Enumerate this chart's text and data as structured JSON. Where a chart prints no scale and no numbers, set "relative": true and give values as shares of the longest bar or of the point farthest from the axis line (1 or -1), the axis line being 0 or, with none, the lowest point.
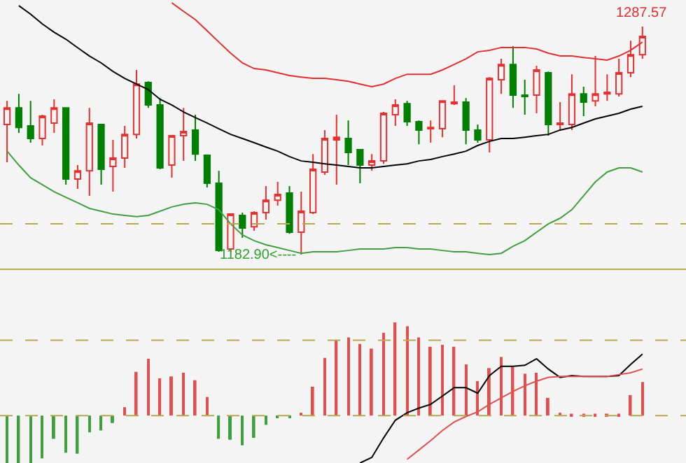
{
  "chart_data": [
    {
      "type": "candlestick",
      "categories": [
        null,
        null,
        null,
        null,
        null,
        null,
        null,
        null,
        null,
        null,
        null,
        null,
        null,
        null,
        null,
        null,
        null,
        null,
        null,
        null,
        null,
        null,
        null,
        null,
        null,
        null,
        null,
        null,
        null,
        null,
        null,
        null,
        null,
        null,
        null,
        null,
        null,
        null,
        null,
        null,
        null,
        null,
        null,
        null,
        null,
        null,
        null,
        null,
        null,
        null,
        null,
        null,
        null,
        null,
        null
      ],
      "ylim": [
        1176.5,
        1299.8
      ],
      "ref_lines": [
        {
          "axis": "y",
          "value": 1197.0,
          "color": "#b8a850",
          "line_style": "dashed"
        }
      ],
      "annotations": [
        {
          "text": "1287.57",
          "y": 1287.57
        },
        "1182.90<----"
      ],
      "series": [
        {
          "colors": [
            "#e83030",
            "#008000",
            "#008000",
            "#e83030",
            "#e83030",
            "#008000",
            "#e83030",
            "#e83030",
            "#008000",
            "#e83030",
            "#e83030",
            "#e83030",
            "#008000",
            "#008000",
            "#e83030",
            "#e83030",
            "#008000",
            "#008000",
            "#008000",
            "#e83030",
            "#008000",
            "#e83030",
            "#e83030",
            "#e83030",
            "#008000",
            "#e83030",
            "#e83030",
            "#e83030",
            "#e83030",
            "#008000",
            "#008000",
            "#e83030",
            "#e83030",
            "#e83030",
            "#008000",
            "#008000",
            "#e83030",
            "#e83030",
            "#e83030",
            "#008000",
            "#008000",
            "#e83030",
            "#e83030",
            "#008000",
            "#008000",
            "#e83030",
            "#008000",
            "#e83030",
            "#e83030",
            "#008000",
            "#e83030",
            "#e83030",
            "#e83030",
            "#e83030",
            "#e83030"
          ],
          "ohlc": [
            [
              1242.6,
              1253.5,
              1225.3,
              1250.3
            ],
            [
              1250.3,
              1256.7,
              1238.8,
              1241.3
            ],
            [
              1242.0,
              1253.5,
              1234.3,
              1236.2
            ],
            [
              1236.2,
              1247.1,
              1233.0,
              1246.5
            ],
            [
              1243.3,
              1254.2,
              1238.8,
              1250.3
            ],
            [
              1250.3,
              1250.3,
              1215.0,
              1217.6
            ],
            [
              1217.6,
              1224.0,
              1213.1,
              1221.4
            ],
            [
              1221.4,
              1250.3,
              1209.9,
              1243.3
            ],
            [
              1242.6,
              1242.6,
              1215.0,
              1222.1
            ],
            [
              1223.4,
              1235.6,
              1211.8,
              1227.2
            ],
            [
              1227.2,
              1242.0,
              1222.7,
              1238.1
            ],
            [
              1238.1,
              1267.7,
              1236.2,
              1261.2
            ],
            [
              1261.9,
              1262.5,
              1250.3,
              1251.6
            ],
            [
              1251.6,
              1254.8,
              1222.1,
              1222.7
            ],
            [
              1224.0,
              1237.5,
              1218.2,
              1237.5
            ],
            [
              1237.5,
              1250.3,
              1225.9,
              1239.4
            ],
            [
              1240.1,
              1247.1,
              1225.9,
              1229.1
            ],
            [
              1228.5,
              1228.5,
              1213.7,
              1215.7
            ],
            [
              1215.7,
              1221.4,
              1184.2,
              1184.8
            ],
            [
              1185.5,
              1201.5,
              1184.2,
              1201.5
            ],
            [
              1200.9,
              1202.2,
              1190.6,
              1195.1
            ],
            [
              1195.7,
              1202.8,
              1193.8,
              1202.2
            ],
            [
              1202.2,
              1214.4,
              1199.0,
              1207.9
            ],
            [
              1207.9,
              1216.3,
              1205.4,
              1210.5
            ],
            [
              1211.2,
              1214.4,
              1192.5,
              1193.2
            ],
            [
              1193.2,
              1211.8,
              1182.9,
              1202.8
            ],
            [
              1202.2,
              1229.1,
              1201.5,
              1222.1
            ],
            [
              1220.8,
              1240.1,
              1219.5,
              1236.2
            ],
            [
              1235.6,
              1247.1,
              1215.0,
              1236.8
            ],
            [
              1236.2,
              1244.5,
              1224.0,
              1229.8
            ],
            [
              1231.1,
              1231.1,
              1215.7,
              1224.0
            ],
            [
              1224.0,
              1229.1,
              1221.4,
              1225.9
            ],
            [
              1225.9,
              1248.4,
              1224.6,
              1247.8
            ],
            [
              1247.1,
              1254.2,
              1242.0,
              1251.6
            ],
            [
              1252.2,
              1253.5,
              1242.0,
              1243.9
            ],
            [
              1243.9,
              1244.5,
              1233.6,
              1240.1
            ],
            [
              1240.7,
              1244.5,
              1234.3,
              1241.3
            ],
            [
              1240.7,
              1253.5,
              1236.8,
              1253.5
            ],
            [
              1252.2,
              1260.6,
              1251.6,
              1252.9
            ],
            [
              1252.9,
              1254.8,
              1233.6,
              1240.1
            ],
            [
              1240.1,
              1242.6,
              1234.3,
              1235.6
            ],
            [
              1235.6,
              1264.4,
              1229.8,
              1263.8
            ],
            [
              1263.2,
              1272.8,
              1256.7,
              1270.2
            ],
            [
              1270.2,
              1278.6,
              1250.3,
              1256.1
            ],
            [
              1256.1,
              1263.2,
              1247.1,
              1255.5
            ],
            [
              1256.1,
              1269.6,
              1247.8,
              1267.7
            ],
            [
              1266.4,
              1267.0,
              1237.5,
              1242.6
            ],
            [
              1242.6,
              1252.9,
              1240.1,
              1243.3
            ],
            [
              1242.6,
              1265.7,
              1240.1,
              1256.7
            ],
            [
              1256.7,
              1260.0,
              1246.5,
              1252.9
            ],
            [
              1253.5,
              1274.1,
              1251.0,
              1256.7
            ],
            [
              1256.7,
              1265.7,
              1253.5,
              1257.4
            ],
            [
              1256.7,
              1272.8,
              1255.5,
              1266.4
            ],
            [
              1266.4,
              1281.1,
              1264.4,
              1274.7
            ],
            [
              1274.7,
              1287.57,
              1272.8,
              1283.1
            ]
          ]
        },
        {
          "type": "line",
          "color": "#000000",
          "values": [
            null,
            1297.2,
            1293.3,
            1288.8,
            1285.0,
            1281.8,
            1277.9,
            1274.1,
            1270.9,
            1267.0,
            1263.8,
            1261.2,
            1258.7,
            1254.2,
            1251.6,
            1248.4,
            1245.8,
            1243.3,
            1240.7,
            1238.1,
            1236.2,
            1234.3,
            1232.3,
            1230.4,
            1227.9,
            1225.9,
            1225.3,
            1224.6,
            1224.0,
            1223.4,
            1222.7,
            1222.7,
            1223.4,
            1224.0,
            1224.6,
            1225.9,
            1226.6,
            1227.9,
            1229.1,
            1230.4,
            1233.0,
            1234.9,
            1236.2,
            1236.2,
            1236.8,
            1237.5,
            1238.1,
            1240.1,
            1241.3,
            1243.3,
            1245.2,
            1246.5,
            1247.8,
            1249.7,
            1251.0
          ]
        },
        {
          "type": "line",
          "color": "#e03030",
          "values": [
            null,
            null,
            null,
            null,
            null,
            null,
            null,
            null,
            null,
            null,
            null,
            null,
            null,
            null,
            1298.5,
            1294.6,
            1290.8,
            1285.7,
            1280.5,
            1275.4,
            1270.9,
            1268.3,
            1267.7,
            1266.4,
            1265.1,
            1264.4,
            1263.8,
            1263.8,
            1263.2,
            1262.5,
            1261.2,
            1260.0,
            1261.2,
            1263.8,
            1265.7,
            1265.7,
            1265.7,
            1267.7,
            1270.2,
            1272.8,
            1276.0,
            1276.7,
            1278.0,
            1278.0,
            1278.0,
            1277.3,
            1275.4,
            1274.1,
            1274.1,
            1273.4,
            1272.8,
            1272.2,
            1274.1,
            1276.7,
            1280.5
          ]
        },
        {
          "type": "line",
          "color": "#40a040",
          "values": [
            1230.4,
            1224.0,
            1218.2,
            1215.0,
            1211.8,
            1209.2,
            1206.7,
            1204.1,
            1202.8,
            1201.5,
            1200.9,
            1200.3,
            1200.9,
            1202.8,
            1204.8,
            1206.0,
            1206.7,
            1206.0,
            1203.5,
            1197.0,
            1191.9,
            1189.3,
            1187.4,
            1186.1,
            1184.8,
            1183.5,
            1184.2,
            1184.2,
            1184.2,
            1184.8,
            1185.5,
            1185.5,
            1185.5,
            1186.1,
            1186.1,
            1185.5,
            1185.5,
            1184.8,
            1184.2,
            1184.2,
            1183.5,
            1182.9,
            1183.5,
            1186.7,
            1189.3,
            1193.2,
            1197.0,
            1199.6,
            1203.5,
            1209.9,
            1216.3,
            1220.8,
            1222.7,
            1222.7,
            1220.8
          ]
        }
      ]
    },
    {
      "type": "bar",
      "relative": true,
      "ref_lines": [
        {
          "axis": "y",
          "value": 0,
          "color": "#b8a850",
          "line_style": "dashed"
        },
        {
          "axis": "y",
          "value": 0.81,
          "color": "#b8a850",
          "line_style": "dashed"
        }
      ],
      "categories": [
        null,
        null,
        null,
        null,
        null,
        null,
        null,
        null,
        null,
        null,
        null,
        null,
        null,
        null,
        null,
        null,
        null,
        null,
        null,
        null,
        null,
        null,
        null,
        null,
        null,
        null,
        null,
        null,
        null,
        null,
        null,
        null,
        null,
        null,
        null,
        null,
        null,
        null,
        null,
        null,
        null,
        null,
        null,
        null,
        null,
        null,
        null,
        null,
        null,
        null,
        null,
        null,
        null,
        null,
        null
      ],
      "series": [
        {
          "colors": [
            "#40a040",
            "#40a040",
            "#40a040",
            "#40a040",
            "#40a040",
            "#40a040",
            "#40a040",
            "#40a040",
            "#40a040",
            "#40a040",
            "#e05050",
            "#e05050",
            "#e05050",
            "#e05050",
            "#e05050",
            "#e05050",
            "#e05050",
            "#e05050",
            "#40a040",
            "#40a040",
            "#40a040",
            "#40a040",
            "#40a040",
            "#40a040",
            "#40a040",
            "#e05050",
            "#e05050",
            "#e05050",
            "#e05050",
            "#e05050",
            "#e05050",
            "#e05050",
            "#e05050",
            "#e05050",
            "#e05050",
            "#e05050",
            "#e05050",
            "#e05050",
            "#e05050",
            "#e05050",
            "#e05050",
            "#e05050",
            "#e05050",
            "#e05050",
            "#e05050",
            "#e05050",
            "#e05050",
            "#e05050",
            "#e05050",
            "#e05050",
            "#e05050",
            "#e05050",
            "#e05050",
            "#e05050",
            "#e05050"
          ],
          "values": [
            -0.51,
            -0.51,
            -0.51,
            -0.46,
            -0.25,
            -0.4,
            -0.41,
            -0.18,
            -0.16,
            -0.08,
            0.09,
            0.47,
            0.61,
            0.4,
            0.42,
            0.46,
            0.38,
            0.2,
            -0.25,
            -0.26,
            -0.32,
            -0.24,
            -0.1,
            -0.02,
            -0.02,
            0.03,
            0.31,
            0.62,
            0.81,
            0.84,
            0.77,
            0.72,
            0.89,
            1,
            0.96,
            0.84,
            0.74,
            0.76,
            0.74,
            0.55,
            0.37,
            0.51,
            0.63,
            0.52,
            0.45,
            0.46,
            0.19,
            0.03,
            0.02,
            0.02,
            0.02,
            0.02,
            0.02,
            0.22,
            0.36
          ]
        },
        {
          "type": "line",
          "color": "#000000",
          "values": [
            null,
            null,
            null,
            null,
            null,
            null,
            null,
            null,
            null,
            null,
            null,
            null,
            null,
            null,
            null,
            null,
            null,
            null,
            null,
            null,
            null,
            null,
            null,
            null,
            null,
            null,
            null,
            null,
            null,
            null,
            -0.51,
            -0.45,
            -0.24,
            -0.05,
            0.03,
            0.08,
            0.12,
            0.21,
            0.3,
            0.3,
            0.24,
            0.43,
            0.53,
            0.53,
            0.54,
            0.61,
            0.5,
            0.41,
            0.43,
            0.42,
            0.42,
            0.42,
            0.43,
            0.55,
            0.66
          ]
        },
        {
          "type": "line",
          "color": "#e05050",
          "values": [
            null,
            null,
            null,
            null,
            null,
            null,
            null,
            null,
            null,
            null,
            null,
            null,
            null,
            null,
            null,
            null,
            null,
            null,
            null,
            null,
            null,
            null,
            null,
            null,
            null,
            null,
            null,
            null,
            null,
            null,
            null,
            null,
            null,
            null,
            -0.47,
            -0.37,
            -0.27,
            -0.16,
            -0.07,
            -0.01,
            0.04,
            0.12,
            0.19,
            0.26,
            0.32,
            0.37,
            0.41,
            0.42,
            0.42,
            0.42,
            0.42,
            0.42,
            0.44,
            0.46,
            0.5
          ]
        }
      ]
    }
  ]
}
